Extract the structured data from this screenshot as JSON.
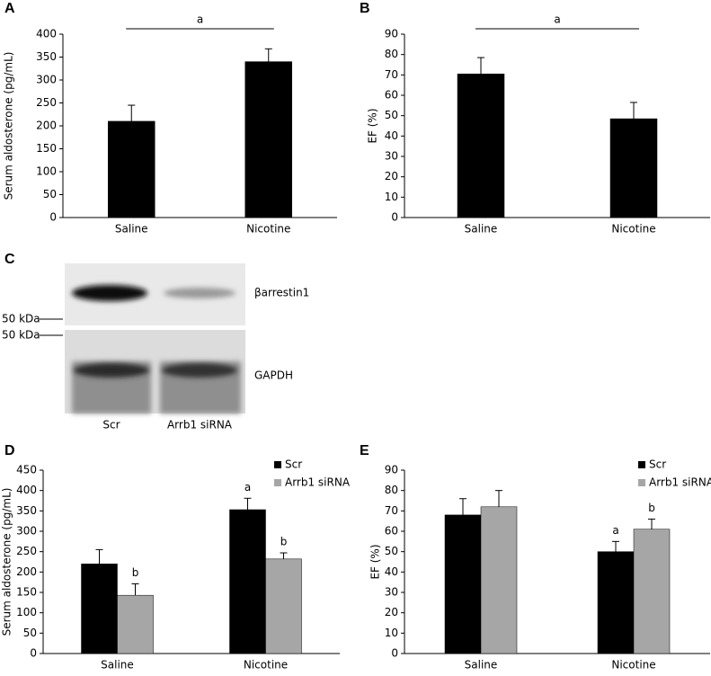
{
  "chart_data": [
    {
      "type": "bar",
      "panel": "A",
      "ylabel": "Serum aldosterone (pg/mL)",
      "categories": [
        "Saline",
        "Nicotine"
      ],
      "series": [
        {
          "color": "#000000",
          "values": [
            210,
            340
          ],
          "errors": [
            35,
            28
          ]
        }
      ],
      "ylim": [
        0,
        400
      ],
      "yticks": [
        0,
        50,
        100,
        150,
        200,
        250,
        300,
        350,
        400
      ],
      "annotation": "a"
    },
    {
      "type": "bar",
      "panel": "B",
      "ylabel": "EF (%)",
      "categories": [
        "Saline",
        "Nicotine"
      ],
      "series": [
        {
          "color": "#000000",
          "values": [
            70.5,
            48.5
          ],
          "errors": [
            8,
            8
          ]
        }
      ],
      "ylim": [
        0,
        90
      ],
      "yticks": [
        0,
        10,
        20,
        30,
        40,
        50,
        60,
        70,
        80,
        90
      ],
      "annotation": "a"
    },
    {
      "type": "bar",
      "panel": "D",
      "ylabel": "Serum aldosterone (pg/mL)",
      "categories": [
        "Saline",
        "Nicotine"
      ],
      "series": [
        {
          "name": "Scr",
          "color": "#000000",
          "values": [
            220,
            353
          ],
          "errors": [
            35,
            28
          ],
          "annotations": [
            null,
            "a"
          ]
        },
        {
          "name": "Arrb1 siRNA",
          "color": "#a6a6a6",
          "values": [
            143,
            232
          ],
          "errors": [
            28,
            15
          ],
          "annotations": [
            "b",
            "b"
          ]
        }
      ],
      "ylim": [
        0,
        450
      ],
      "yticks": [
        0,
        50,
        100,
        150,
        200,
        250,
        300,
        350,
        400,
        450
      ],
      "legend": "upper right"
    },
    {
      "type": "bar",
      "panel": "E",
      "ylabel": "EF (%)",
      "categories": [
        "Saline",
        "Nicotine"
      ],
      "series": [
        {
          "name": "Scr",
          "color": "#000000",
          "values": [
            68,
            50
          ],
          "errors": [
            8,
            5
          ],
          "annotations": [
            null,
            "a"
          ]
        },
        {
          "name": "Arrb1 siRNA",
          "color": "#a6a6a6",
          "values": [
            72,
            61
          ],
          "errors": [
            8,
            5
          ],
          "annotations": [
            null,
            "b"
          ]
        }
      ],
      "ylim": [
        0,
        90
      ],
      "yticks": [
        0,
        10,
        20,
        30,
        40,
        50,
        60,
        70,
        80,
        90
      ],
      "legend": "upper right"
    }
  ],
  "blot": {
    "panel": "C",
    "bands": [
      "βarrestin1",
      "GAPDH"
    ],
    "markers": [
      "50 kDa",
      "50 kDa"
    ],
    "lanes": [
      "Scr",
      "Arrb1 siRNA"
    ]
  }
}
